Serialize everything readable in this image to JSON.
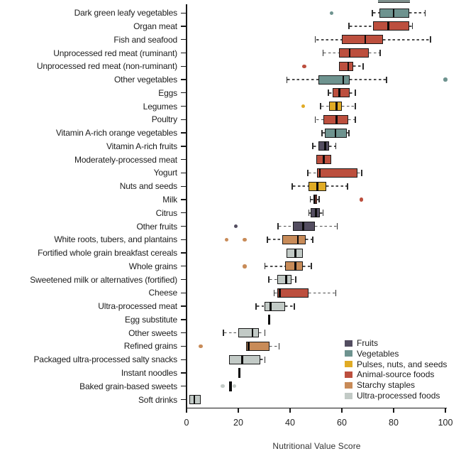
{
  "chart_data": {
    "type": "boxplot",
    "orientation": "horizontal",
    "title": "",
    "xlabel": "Nutritional Value Score",
    "ylabel": "",
    "xlim": [
      0,
      100
    ],
    "xticks": [
      0,
      20,
      40,
      60,
      80,
      100
    ],
    "grid": false,
    "legend_position": "bottom-right",
    "groups": {
      "fruits": {
        "label": "Fruits",
        "color": "#534d60"
      },
      "vegetables": {
        "label": "Vegetables",
        "color": "#6e938f"
      },
      "pulses": {
        "label": "Pulses, nuts, and seeds",
        "color": "#e0ab25"
      },
      "animal": {
        "label": "Animal-source foods",
        "color": "#bc4f3e"
      },
      "starchy": {
        "label": "Starchy staples",
        "color": "#c88b58"
      },
      "ultra": {
        "label": "Ultra-processed foods",
        "color": "#c2cac6"
      }
    },
    "legend_order": [
      "fruits",
      "vegetables",
      "pulses",
      "animal",
      "starchy",
      "ultra"
    ],
    "rows": [
      {
        "label": "Dark green leafy vegetables",
        "group": "vegetables",
        "low": 72,
        "q1": 74.5,
        "median": 80,
        "q3": 86,
        "high": 92,
        "outliers": [
          56
        ]
      },
      {
        "label": "Organ meat",
        "group": "animal",
        "low": 63,
        "q1": 72,
        "median": 78,
        "q3": 86,
        "high": 87,
        "outliers": []
      },
      {
        "label": "Fish and seafood",
        "group": "animal",
        "low": 50,
        "q1": 60,
        "median": 69,
        "q3": 76,
        "high": 94,
        "outliers": []
      },
      {
        "label": "Unprocessed red meat (ruminant)",
        "group": "animal",
        "low": 53,
        "q1": 59,
        "median": 63,
        "q3": 70.5,
        "high": 74.5,
        "outliers": []
      },
      {
        "label": "Unprocessed red meat (non-ruminant)",
        "group": "animal",
        "low": 59,
        "q1": 59,
        "median": 62.5,
        "q3": 64.5,
        "high": 68,
        "outliers": [
          45.5
        ]
      },
      {
        "label": "Other vegetables",
        "group": "vegetables",
        "low": 39,
        "q1": 51,
        "median": 60.5,
        "q3": 63,
        "high": 77,
        "outliers": [
          100
        ]
      },
      {
        "label": "Eggs",
        "group": "animal",
        "low": 55,
        "q1": 56.5,
        "median": 59,
        "q3": 63,
        "high": 65,
        "outliers": []
      },
      {
        "label": "Legumes",
        "group": "pulses",
        "low": 52,
        "q1": 55,
        "median": 58,
        "q3": 60,
        "high": 65,
        "outliers": [
          45
        ]
      },
      {
        "label": "Poultry",
        "group": "animal",
        "low": 50,
        "q1": 53,
        "median": 58,
        "q3": 62.5,
        "high": 65,
        "outliers": []
      },
      {
        "label": "Vitamin A-rich orange vegetables",
        "group": "vegetables",
        "low": 52.5,
        "q1": 53.5,
        "median": 57.5,
        "q3": 62,
        "high": 62.5,
        "outliers": []
      },
      {
        "label": "Vitamin A-rich fruits",
        "group": "fruits",
        "low": 49,
        "q1": 51,
        "median": 53.5,
        "q3": 55,
        "high": 57.5,
        "outliers": []
      },
      {
        "label": "Moderately-processed meat",
        "group": "animal",
        "low": 50,
        "q1": 50,
        "median": 53,
        "q3": 56,
        "high": 56,
        "outliers": []
      },
      {
        "label": "Yogurt",
        "group": "animal",
        "low": 47,
        "q1": 50.5,
        "median": 51.5,
        "q3": 66,
        "high": 67.5,
        "outliers": []
      },
      {
        "label": "Nuts and seeds",
        "group": "pulses",
        "low": 41,
        "q1": 47,
        "median": 50.5,
        "q3": 54,
        "high": 62,
        "outliers": []
      },
      {
        "label": "Milk",
        "group": "animal",
        "low": 48,
        "q1": 49,
        "median": 49.5,
        "q3": 50.5,
        "high": 51,
        "outliers": [
          67.5
        ]
      },
      {
        "label": "Citrus",
        "group": "fruits",
        "low": 47.5,
        "q1": 48,
        "median": 50,
        "q3": 51.5,
        "high": 52.5,
        "outliers": []
      },
      {
        "label": "Other fruits",
        "group": "fruits",
        "low": 35.5,
        "q1": 41,
        "median": 45,
        "q3": 49.5,
        "high": 58,
        "outliers": [
          19
        ]
      },
      {
        "label": "White roots, tubers, and plantains",
        "group": "starchy",
        "low": 31.5,
        "q1": 37,
        "median": 43,
        "q3": 46,
        "high": 48.5,
        "outliers": [
          15.5,
          22.5
        ]
      },
      {
        "label": "Fortified whole grain breakfast cereals",
        "group": "ultra",
        "low": 38.5,
        "q1": 38.5,
        "median": 42,
        "q3": 45,
        "high": 45,
        "outliers": []
      },
      {
        "label": "Whole grains",
        "group": "starchy",
        "low": 30.5,
        "q1": 38,
        "median": 42,
        "q3": 45,
        "high": 48,
        "outliers": [
          22.5
        ]
      },
      {
        "label": "Sweetened milk or alternatives (fortified)",
        "group": "ultra",
        "low": 32,
        "q1": 35,
        "median": 38.5,
        "q3": 40.5,
        "high": 42,
        "outliers": []
      },
      {
        "label": "Cheese",
        "group": "animal",
        "low": 34,
        "q1": 35,
        "median": 36,
        "q3": 47,
        "high": 57.5,
        "outliers": []
      },
      {
        "label": "Ultra-processed meat",
        "group": "ultra",
        "low": 27,
        "q1": 30,
        "median": 32.5,
        "q3": 38,
        "high": 41.5,
        "outliers": []
      },
      {
        "label": "Egg substitute",
        "group": "ultra",
        "low": 32,
        "q1": 32,
        "median": 32,
        "q3": 32,
        "high": 32,
        "outliers": []
      },
      {
        "label": "Other sweets",
        "group": "ultra",
        "low": 14.5,
        "q1": 20,
        "median": 25.5,
        "q3": 28,
        "high": 30,
        "outliers": []
      },
      {
        "label": "Refined grains",
        "group": "starchy",
        "low": 23,
        "q1": 23,
        "median": 24,
        "q3": 32,
        "high": 35.5,
        "outliers": [
          5.5
        ]
      },
      {
        "label": "Packaged ultra-processed salty snacks",
        "group": "ultra",
        "low": 16.5,
        "q1": 16.5,
        "median": 21.5,
        "q3": 28.5,
        "high": 30,
        "outliers": []
      },
      {
        "label": "Instant noodles",
        "group": "ultra",
        "low": 20.5,
        "q1": 20.5,
        "median": 20.5,
        "q3": 20.5,
        "high": 20.5,
        "outliers": []
      },
      {
        "label": "Baked grain-based sweets",
        "group": "ultra",
        "low": 17,
        "q1": 17,
        "median": 17,
        "q3": 17,
        "high": 17,
        "outliers": [
          14,
          18.5
        ]
      },
      {
        "label": "Soft drinks",
        "group": "ultra",
        "low": 1,
        "q1": 1,
        "median": 3,
        "q3": 5.5,
        "high": 5.5,
        "outliers": []
      }
    ]
  }
}
